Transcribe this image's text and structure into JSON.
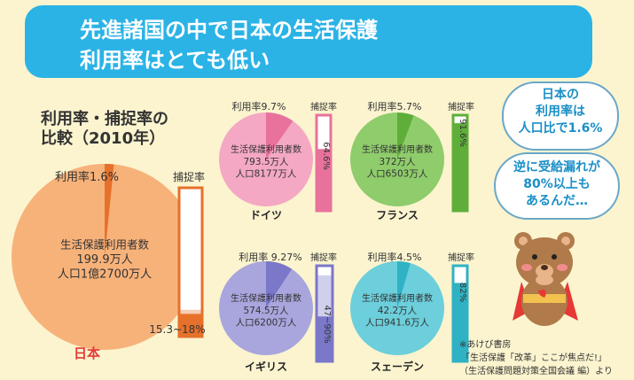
{
  "header": {
    "line1": "先進諸国の中で日本の生活保護",
    "line2": "利用率はとても低い"
  },
  "section": {
    "title_line1": "利用率・捕捉率の",
    "title_line2": "比較（2010年）"
  },
  "bubbles": {
    "top": [
      "日本の",
      "利用率は",
      "人口比で1.6%"
    ],
    "bottom": [
      "逆に受給漏れが",
      "80%以上も",
      "あるんだ…"
    ]
  },
  "source": {
    "line1": "※あけび書房",
    "line2": "「生活保護「改革」ここが焦点だ!」",
    "line3": "（生活保護問題対策全国会議 編）より"
  },
  "colors": {
    "banner": "#2bb3e6",
    "japan_pie": "#f7b27a",
    "japan_slice": "#e6712b",
    "germany_pie": "#f4a8c4",
    "germany_slice": "#e8729c",
    "france_pie": "#8fcc6b",
    "france_slice": "#5fae3a",
    "uk_pie": "#a9a6dd",
    "uk_slice": "#7b77c9",
    "sweden_pie": "#6ccfdb",
    "sweden_slice": "#2fb2c4"
  },
  "chart_data": [
    {
      "type": "pie",
      "country": "日本",
      "usage_label": "利用率1.6%",
      "usage_rate": 1.6,
      "recipients_label": "生活保護利用者数",
      "recipients": "199.9万人",
      "population": "人口1億2700万人",
      "capture_title": "捕捉率",
      "capture_label": "15.3~18%",
      "capture_rate": [
        15.3,
        18
      ]
    },
    {
      "type": "pie",
      "country": "ドイツ",
      "usage_label": "利用率9.7%",
      "usage_rate": 9.7,
      "recipients_label": "生活保護利用者数",
      "recipients": "793.5万人",
      "population": "人口8177万人",
      "capture_title": "捕捉率",
      "capture_label": "64.6%",
      "capture_rate": [
        64.6
      ]
    },
    {
      "type": "pie",
      "country": "フランス",
      "usage_label": "利用率5.7%",
      "usage_rate": 5.7,
      "recipients_label": "生活保護利用者数",
      "recipients": "372万人",
      "population": "人口6503万人",
      "capture_title": "捕捉率",
      "capture_label": "91.6%",
      "capture_rate": [
        91.6
      ]
    },
    {
      "type": "pie",
      "country": "イギリス",
      "usage_label": "利用率 9.27%",
      "usage_rate": 9.27,
      "recipients_label": "生活保護利用者数",
      "recipients": "574.5万人",
      "population": "人口6200万人",
      "capture_title": "捕捉率",
      "capture_label": "47~90%",
      "capture_rate": [
        47,
        90
      ]
    },
    {
      "type": "pie",
      "country": "スェーデン",
      "usage_label": "利用率4.5%",
      "usage_rate": 4.5,
      "recipients_label": "生活保護利用者数",
      "recipients": "42.2万人",
      "population": "人口941.6万人",
      "capture_title": "捕捉率",
      "capture_label": "82%",
      "capture_rate": [
        82
      ]
    }
  ]
}
